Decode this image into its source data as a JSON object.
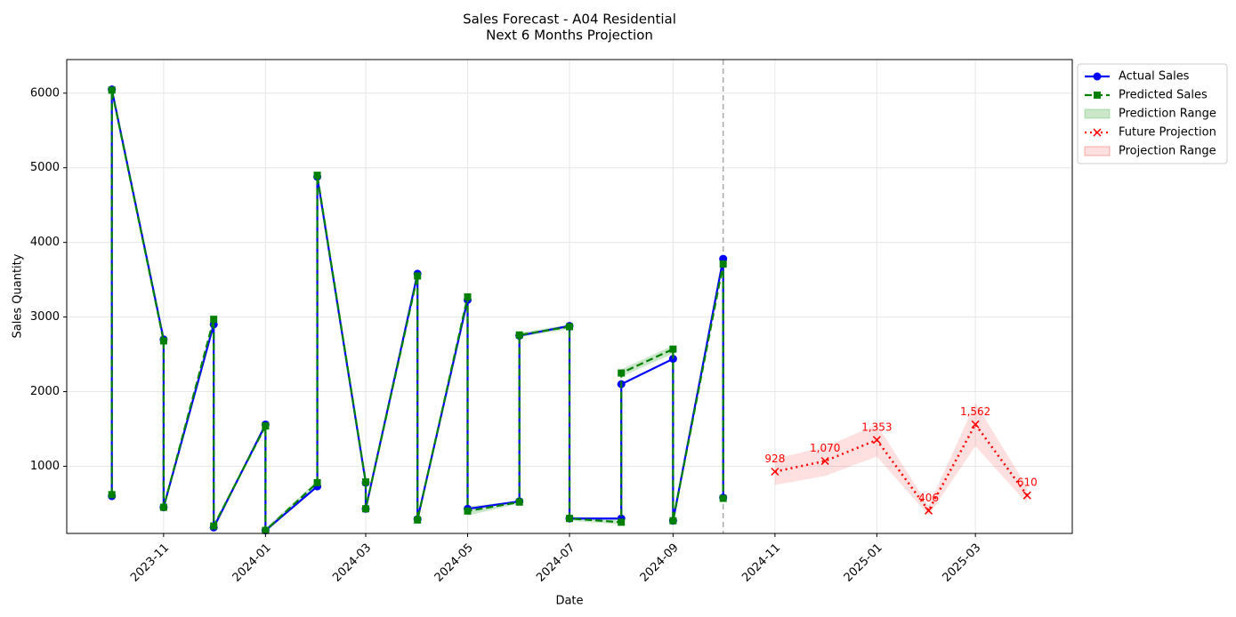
{
  "chart_data": {
    "type": "line",
    "title": "Sales Forecast - A04 Residential",
    "subtitle": "Next 6 Months Projection",
    "xlabel": "Date",
    "ylabel": "Sales Quantity",
    "xlim": [
      "2023-09-04",
      "2025-04-28"
    ],
    "xticks": [
      "2023-11",
      "2024-01",
      "2024-03",
      "2024-05",
      "2024-07",
      "2024-09",
      "2024-11",
      "2025-01",
      "2025-03"
    ],
    "ylim": [
      100,
      6450
    ],
    "yticks": [
      1000,
      2000,
      3000,
      4000,
      5000,
      6000
    ],
    "grid": true,
    "legend": "outside upper right",
    "divider_x": "2024-10",
    "series": [
      {
        "name": "Actual Sales",
        "color": "#0000ff",
        "linestyle": "solid",
        "marker": "o",
        "x": [
          "2023-10",
          "2023-10",
          "2023-11",
          "2023-11",
          "2023-12",
          "2023-12",
          "2024-01",
          "2024-01",
          "2024-02",
          "2024-02",
          "2024-03",
          "2024-03",
          "2024-04",
          "2024-04",
          "2024-05",
          "2024-05",
          "2024-06",
          "2024-06",
          "2024-07",
          "2024-07",
          "2024-08",
          "2024-08",
          "2024-09",
          "2024-09",
          "2024-10",
          "2024-10"
        ],
        "values": [
          600,
          6050,
          2700,
          450,
          2900,
          180,
          1560,
          140,
          730,
          4880,
          780,
          430,
          3580,
          290,
          3230,
          430,
          530,
          2750,
          2880,
          300,
          300,
          2100,
          2440,
          270,
          3780,
          580
        ]
      },
      {
        "name": "Predicted Sales",
        "color": "#008000",
        "linestyle": "dashed",
        "marker": "s",
        "x": [
          "2023-10",
          "2023-10",
          "2023-11",
          "2023-11",
          "2023-12",
          "2023-12",
          "2024-01",
          "2024-01",
          "2024-02",
          "2024-02",
          "2024-03",
          "2024-03",
          "2024-04",
          "2024-04",
          "2024-05",
          "2024-05",
          "2024-06",
          "2024-06",
          "2024-07",
          "2024-07",
          "2024-08",
          "2024-08",
          "2024-09",
          "2024-09",
          "2024-10",
          "2024-10"
        ],
        "values": [
          620,
          6040,
          2680,
          450,
          2970,
          200,
          1540,
          140,
          780,
          4900,
          790,
          430,
          3550,
          280,
          3270,
          400,
          520,
          2760,
          2870,
          300,
          250,
          2250,
          2570,
          270,
          3710,
          570
        ]
      },
      {
        "name": "Future Projection",
        "color": "#ff0000",
        "linestyle": "dotted",
        "marker": "x",
        "x": [
          "2024-11",
          "2024-12",
          "2025-01",
          "2025-02",
          "2025-03",
          "2025-04"
        ],
        "values": [
          928,
          1070,
          1353,
          406,
          1562,
          610
        ],
        "value_labels": [
          "928",
          "1,070",
          "1,353",
          "406",
          "1,562",
          "610"
        ]
      }
    ],
    "bands": [
      {
        "name": "Prediction Range",
        "color": "#2ca02c",
        "after_series": 1,
        "x": [
          "2023-10",
          "2023-10",
          "2023-11",
          "2023-11",
          "2023-12",
          "2023-12",
          "2024-01",
          "2024-01",
          "2024-02",
          "2024-02",
          "2024-03",
          "2024-03",
          "2024-04",
          "2024-04",
          "2024-05",
          "2024-05",
          "2024-06",
          "2024-06",
          "2024-07",
          "2024-07",
          "2024-08",
          "2024-08",
          "2024-09",
          "2024-09",
          "2024-10",
          "2024-10"
        ],
        "lower": [
          590,
          6010,
          2650,
          420,
          2940,
          170,
          1510,
          110,
          750,
          4870,
          760,
          400,
          3520,
          250,
          3240,
          340,
          500,
          2730,
          2840,
          270,
          220,
          2200,
          2510,
          240,
          3680,
          540
        ],
        "upper": [
          650,
          6070,
          2710,
          480,
          3000,
          230,
          1570,
          170,
          810,
          4930,
          820,
          460,
          3580,
          310,
          3300,
          460,
          540,
          2790,
          2900,
          330,
          280,
          2300,
          2620,
          300,
          3740,
          600
        ]
      },
      {
        "name": "Projection Range",
        "color": "#ff0000",
        "after_series": 2,
        "x": [
          "2024-11",
          "2024-12",
          "2025-01",
          "2025-02",
          "2025-03",
          "2025-04"
        ],
        "lower": [
          750,
          870,
          1130,
          340,
          1270,
          500
        ],
        "upper": [
          1100,
          1260,
          1560,
          470,
          1850,
          720
        ]
      }
    ]
  }
}
